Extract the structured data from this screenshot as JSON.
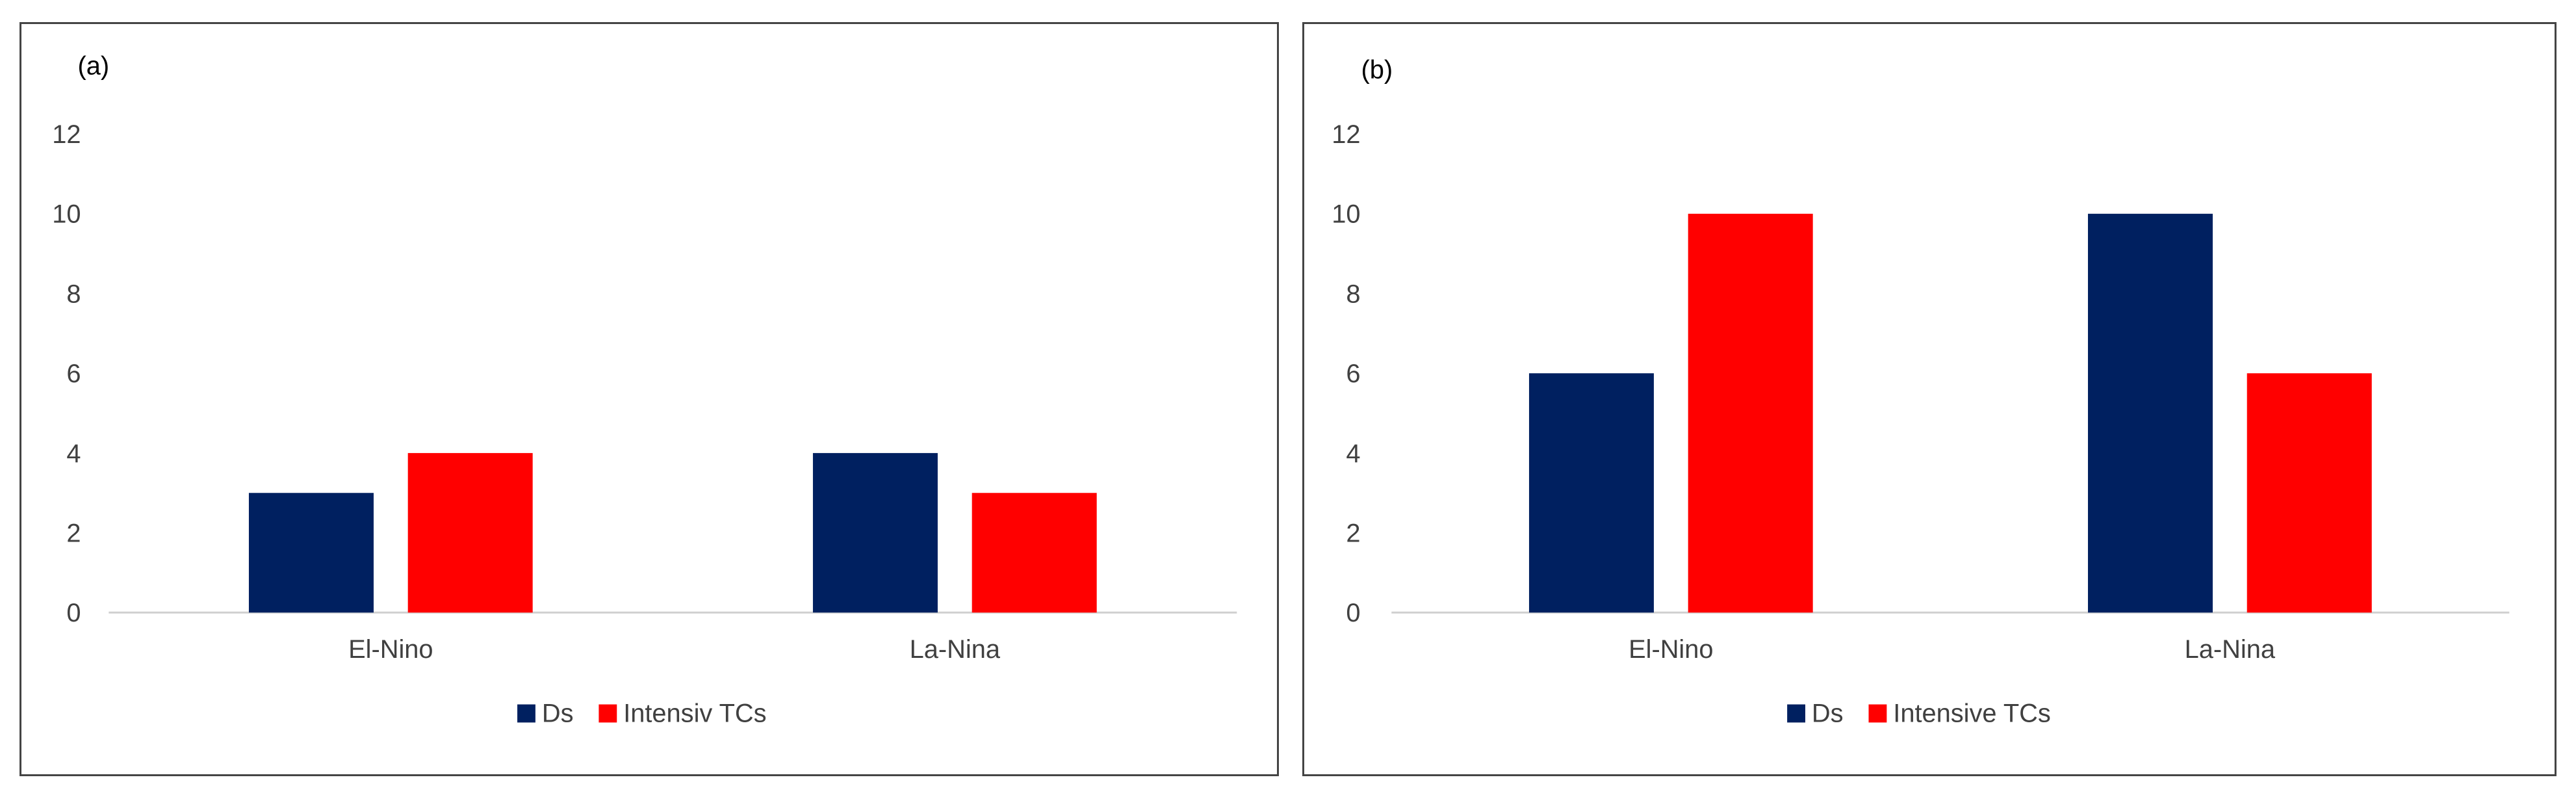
{
  "chart_data": [
    {
      "type": "bar",
      "panel_label": "(a)",
      "categories": [
        "El-Nino",
        "La-Nina"
      ],
      "series": [
        {
          "name": "Ds",
          "values": [
            3,
            4
          ],
          "color": "#002060"
        },
        {
          "name": "Intensiv TCs",
          "values": [
            4,
            3
          ],
          "color": "#ff0000"
        }
      ],
      "ylim": [
        0,
        12
      ],
      "yticks": [
        0,
        2,
        4,
        6,
        8,
        10,
        12
      ],
      "grid": false,
      "legend": "bottom"
    },
    {
      "type": "bar",
      "panel_label": "(b)",
      "categories": [
        "El-Nino",
        "La-Nina"
      ],
      "series": [
        {
          "name": "Ds",
          "values": [
            6,
            10
          ],
          "color": "#002060"
        },
        {
          "name": "Intensive TCs",
          "values": [
            10,
            6
          ],
          "color": "#ff0000"
        }
      ],
      "ylim": [
        0,
        12
      ],
      "yticks": [
        0,
        2,
        4,
        6,
        8,
        10,
        12
      ],
      "grid": false,
      "legend": "bottom"
    }
  ]
}
